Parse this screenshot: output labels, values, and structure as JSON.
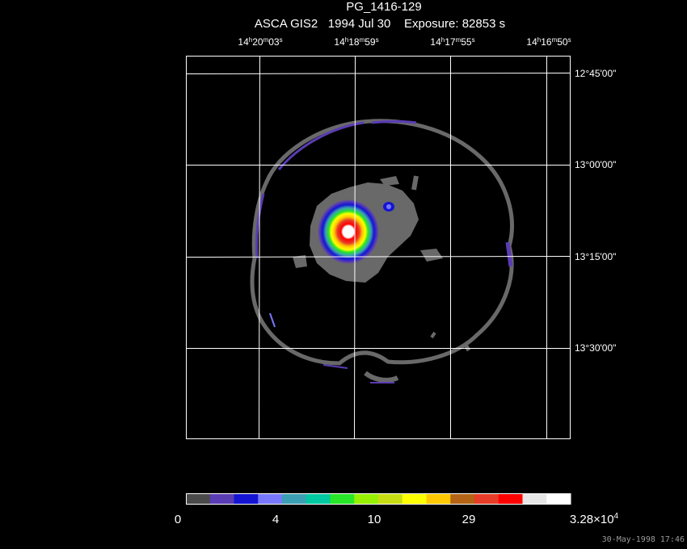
{
  "header": {
    "object": "PG_1416-129",
    "observation": "ASCA GIS2   1994 Jul 30    Exposure: 82853 s"
  },
  "ra_labels": [
    {
      "h": "14",
      "hu": "h",
      "m": "20",
      "mu": "m",
      "s": "03",
      "su": "s"
    },
    {
      "h": "14",
      "hu": "h",
      "m": "18",
      "mu": "m",
      "s": "59",
      "su": "s"
    },
    {
      "h": "14",
      "hu": "h",
      "m": "17",
      "mu": "m",
      "s": "55",
      "su": "s"
    },
    {
      "h": "14",
      "hu": "h",
      "m": "16",
      "mu": "m",
      "s": "50",
      "su": "s"
    }
  ],
  "dec_labels": [
    "12°45'00\"",
    "13°00'00\"",
    "13°15'00\"",
    "13°30'00\""
  ],
  "colorbar": {
    "colors": [
      "#4a4a4a",
      "#5a3cb4",
      "#1414d2",
      "#7878ff",
      "#3c9fb4",
      "#00c8a0",
      "#28e628",
      "#96f000",
      "#c8dc14",
      "#ffff00",
      "#ffc800",
      "#b46414",
      "#e63c28",
      "#ff0000",
      "#e6e6e6",
      "#ffffff"
    ],
    "labels": [
      "0",
      "4",
      "10",
      "29"
    ],
    "max_label": {
      "mantissa": "3.28×10",
      "exponent": "4"
    }
  },
  "source_colors": {
    "background": "#000000",
    "gray": "#696969",
    "grid": "#ffffff"
  },
  "timestamp": "30-May-1998 17:46"
}
